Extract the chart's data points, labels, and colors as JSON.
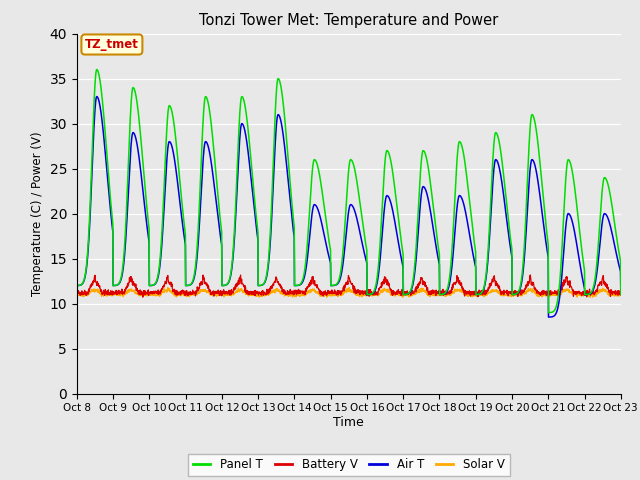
{
  "title": "Tonzi Tower Met: Temperature and Power",
  "xlabel": "Time",
  "ylabel": "Temperature (C) / Power (V)",
  "xlim": [
    0,
    15
  ],
  "ylim": [
    0,
    40
  ],
  "yticks": [
    0,
    5,
    10,
    15,
    20,
    25,
    30,
    35,
    40
  ],
  "xtick_labels": [
    "Oct 8",
    "Oct 9",
    "Oct 10",
    "Oct 11",
    "Oct 12",
    "Oct 13",
    "Oct 14",
    "Oct 15",
    "Oct 16",
    "Oct 17",
    "Oct 18",
    "Oct 19",
    "Oct 20",
    "Oct 21",
    "Oct 22",
    "Oct 23"
  ],
  "annotation_text": "TZ_tmet",
  "annotation_color": "#cc0000",
  "annotation_bg": "#ffffdd",
  "annotation_border": "#cc8800",
  "colors": {
    "panel_t": "#00dd00",
    "battery_v": "#dd0000",
    "air_t": "#0000dd",
    "solar_v": "#ffaa00"
  },
  "legend_labels": [
    "Panel T",
    "Battery V",
    "Air T",
    "Solar V"
  ],
  "plot_bg": "#e8e8e8",
  "fig_bg": "#e8e8e8"
}
